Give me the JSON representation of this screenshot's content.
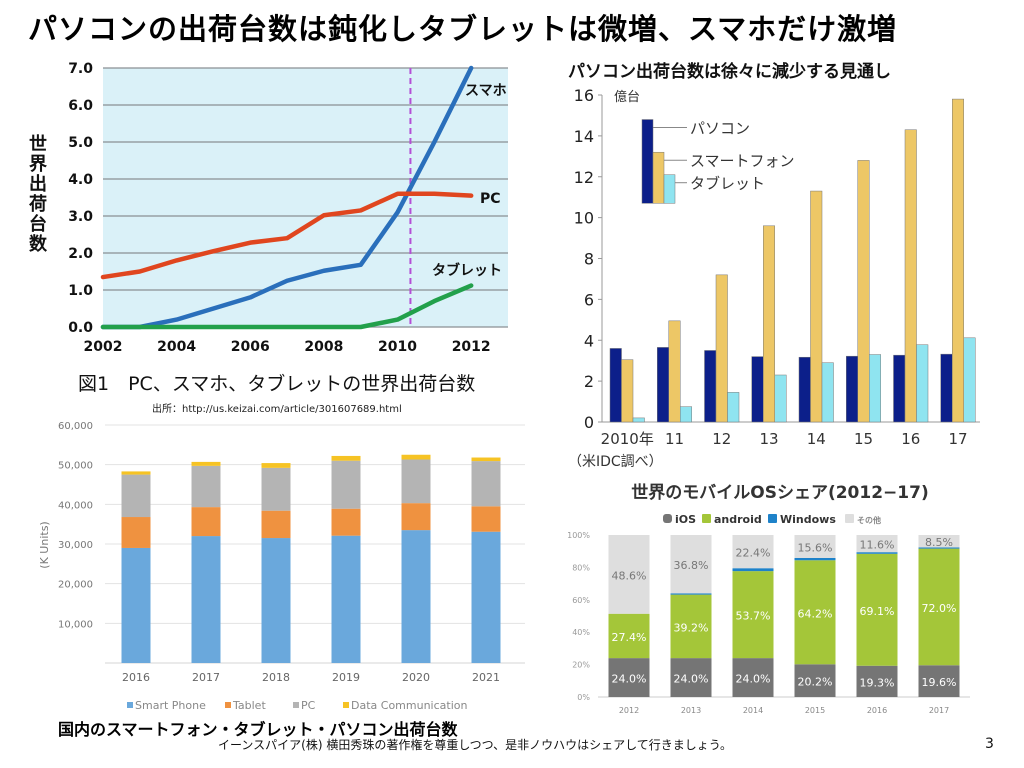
{
  "slide": {
    "title": "パソコンの出荷台数は鈍化しタブレットは微増、スマホだけ激増",
    "footer_note": "イーンスパイア(株) 横田秀珠の著作権を尊重しつつ、是非ノウハウはシェアして行きましょう。",
    "page_number": "3"
  },
  "captions": {
    "chart1_caption": "図1　PC、スマホ、タブレットの世界出荷台数",
    "chart1_source": "出所：http://us.keizai.com/article/301607689.html",
    "chart3_caption": "国内のスマートフォン・タブレット・パソコン出荷台数"
  },
  "chart_data": [
    {
      "id": "global-shipments-line",
      "type": "line",
      "title": "",
      "xlabel": "",
      "ylabel": "世界出荷台数",
      "xlim": [
        2002,
        2013
      ],
      "ylim": [
        0,
        7
      ],
      "x_ticks": [
        "2002",
        "2004",
        "2006",
        "2008",
        "2010",
        "2012"
      ],
      "y_ticks": [
        "0.0",
        "1.0",
        "2.0",
        "3.0",
        "4.0",
        "5.0",
        "6.0",
        "7.0"
      ],
      "grid": true,
      "background": "#daf1f8",
      "marker_line": {
        "x": 2010.35,
        "color": "#b44fd6",
        "style": "dashed"
      },
      "series": [
        {
          "name": "スマホ",
          "color": "#2a6fbb",
          "x": [
            2002,
            2003,
            2004,
            2005,
            2006,
            2007,
            2008,
            2009,
            2010,
            2011,
            2012
          ],
          "values": [
            0,
            0,
            0.2,
            0.5,
            0.8,
            1.25,
            1.52,
            1.68,
            3.1,
            5.0,
            7.0
          ]
        },
        {
          "name": "PC",
          "color": "#e0461f",
          "x": [
            2002,
            2003,
            2004,
            2005,
            2006,
            2007,
            2008,
            2009,
            2010,
            2011,
            2012
          ],
          "values": [
            1.35,
            1.5,
            1.8,
            2.05,
            2.28,
            2.4,
            3.02,
            3.15,
            3.6,
            3.6,
            3.55
          ]
        },
        {
          "name": "タブレット",
          "color": "#22a04b",
          "x": [
            2002,
            2003,
            2004,
            2005,
            2006,
            2007,
            2008,
            2009,
            2010,
            2011,
            2012
          ],
          "values": [
            0,
            0,
            0,
            0,
            0,
            0,
            0,
            0,
            0.2,
            0.7,
            1.12
          ]
        }
      ]
    },
    {
      "id": "pc-forecast-bars",
      "type": "bar",
      "title": "パソコン出荷台数は徐々に減少する見通し",
      "unit_label": "億台",
      "source_note": "（米IDC調べ）",
      "categories": [
        "2010年",
        "11",
        "12",
        "13",
        "14",
        "15",
        "16",
        "17"
      ],
      "ylim": [
        0,
        16
      ],
      "y_ticks": [
        "0",
        "2",
        "4",
        "6",
        "8",
        "10",
        "12",
        "14",
        "16"
      ],
      "legend": "top-left",
      "series": [
        {
          "name": "パソコン",
          "color": "#0c1f8a",
          "values": [
            3.6,
            3.65,
            3.5,
            3.2,
            3.17,
            3.22,
            3.27,
            3.32
          ]
        },
        {
          "name": "スマートフォン",
          "color": "#edc766",
          "values": [
            3.05,
            4.95,
            7.2,
            9.6,
            11.3,
            12.8,
            14.3,
            15.8
          ]
        },
        {
          "name": "タブレット",
          "color": "#8fe4f0",
          "values": [
            0.2,
            0.75,
            1.45,
            2.3,
            2.9,
            3.3,
            3.78,
            4.12
          ]
        }
      ]
    },
    {
      "id": "domestic-shipments-stacked",
      "type": "bar",
      "stacked": true,
      "title": "",
      "ylabel": "(K Units)",
      "categories": [
        "2016",
        "2017",
        "2018",
        "2019",
        "2020",
        "2021"
      ],
      "ylim": [
        0,
        60000
      ],
      "y_ticks": [
        "10,000",
        "20,000",
        "30,000",
        "40,000",
        "50,000",
        "60,000"
      ],
      "legend": "bottom",
      "grid": true,
      "series": [
        {
          "name": "Smart Phone",
          "color": "#6aa8dc",
          "values": [
            29000,
            32000,
            31500,
            32100,
            33500,
            33100
          ]
        },
        {
          "name": "Tablet",
          "color": "#ef9240",
          "values": [
            7800,
            7300,
            6900,
            6800,
            6800,
            6400
          ]
        },
        {
          "name": "PC",
          "color": "#b4b4b4",
          "values": [
            10700,
            10400,
            10800,
            12100,
            11000,
            11400
          ]
        },
        {
          "name": "Data Communication",
          "color": "#f6c324",
          "values": [
            800,
            1000,
            1200,
            1200,
            1200,
            900
          ]
        }
      ]
    },
    {
      "id": "mobile-os-share",
      "type": "bar",
      "stacked": true,
      "percent": true,
      "title": "世界のモバイルOSシェア(2012−17)",
      "categories": [
        "2012",
        "2013",
        "2014",
        "2015",
        "2016",
        "2017"
      ],
      "ylim": [
        0,
        100
      ],
      "y_ticks": [
        "0%",
        "20%",
        "40%",
        "60%",
        "80%",
        "100%"
      ],
      "legend": "top",
      "series": [
        {
          "name": "iOS",
          "color": "#757575",
          "values": [
            24.0,
            24.0,
            24.0,
            20.2,
            19.3,
            19.6
          ],
          "labels": [
            "24.0%",
            "24.0%",
            "24.0%",
            "20.2%",
            "19.3%",
            "19.6%"
          ]
        },
        {
          "name": "android",
          "color": "#a4c639",
          "values": [
            27.4,
            39.2,
            53.7,
            64.2,
            69.1,
            72.0
          ],
          "labels": [
            "27.4%",
            "39.2%",
            "53.7%",
            "64.2%",
            "69.1%",
            "72.0%"
          ]
        },
        {
          "name": "Windows",
          "color": "#1e82c9",
          "values": [
            0,
            0.8,
            1.8,
            1.4,
            1.0,
            0.7
          ],
          "labels": [
            "",
            "",
            "",
            "",
            "",
            ""
          ]
        },
        {
          "name": "その他",
          "color": "#dedede",
          "values": [
            48.6,
            36.8,
            22.4,
            15.6,
            11.6,
            8.5
          ],
          "labels": [
            "48.6%",
            "36.8%",
            "22.4%",
            "15.6%",
            "11.6%",
            "8.5%"
          ]
        }
      ]
    }
  ]
}
